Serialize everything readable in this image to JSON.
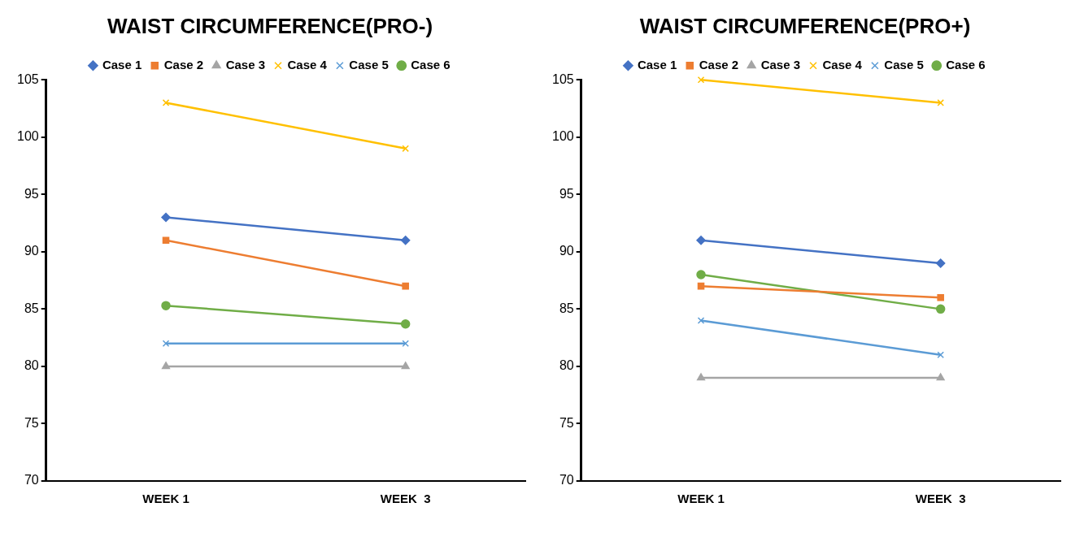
{
  "chart_data": [
    {
      "type": "line",
      "title": "WAIST CIRCUMFERENCE(PRO-)",
      "categories": [
        "WEEK 1",
        "WEEK  3"
      ],
      "ylim": [
        70,
        105
      ],
      "yticks": [
        70,
        75,
        80,
        85,
        90,
        95,
        100,
        105
      ],
      "grid": false,
      "legend": "top",
      "series": [
        {
          "name": "Case 1",
          "color": "#4472c4",
          "marker": "diamond",
          "values": [
            93,
            91
          ]
        },
        {
          "name": "Case 2",
          "color": "#ed7d31",
          "marker": "square",
          "values": [
            91,
            87
          ]
        },
        {
          "name": "Case 3",
          "color": "#a5a5a5",
          "marker": "triangle",
          "values": [
            80,
            80
          ]
        },
        {
          "name": "Case 4",
          "color": "#ffc000",
          "marker": "cross",
          "values": [
            103,
            99
          ]
        },
        {
          "name": "Case 5",
          "color": "#5b9bd5",
          "marker": "cross",
          "values": [
            82,
            82
          ]
        },
        {
          "name": "Case 6",
          "color": "#70ad47",
          "marker": "circle",
          "values": [
            85.3,
            83.7
          ]
        }
      ]
    },
    {
      "type": "line",
      "title": "WAIST CIRCUMFERENCE(PRO+)",
      "categories": [
        "WEEK 1",
        "WEEK  3"
      ],
      "ylim": [
        70,
        105
      ],
      "yticks": [
        70,
        75,
        80,
        85,
        90,
        95,
        100,
        105
      ],
      "grid": false,
      "legend": "top",
      "series": [
        {
          "name": "Case 1",
          "color": "#4472c4",
          "marker": "diamond",
          "values": [
            91,
            89
          ]
        },
        {
          "name": "Case 2",
          "color": "#ed7d31",
          "marker": "square",
          "values": [
            87,
            86
          ]
        },
        {
          "name": "Case 3",
          "color": "#a5a5a5",
          "marker": "triangle",
          "values": [
            79,
            79
          ]
        },
        {
          "name": "Case 4",
          "color": "#ffc000",
          "marker": "cross",
          "values": [
            105,
            103
          ]
        },
        {
          "name": "Case 5",
          "color": "#5b9bd5",
          "marker": "cross",
          "values": [
            84,
            81
          ]
        },
        {
          "name": "Case 6",
          "color": "#70ad47",
          "marker": "circle",
          "values": [
            88,
            85
          ]
        }
      ]
    }
  ]
}
